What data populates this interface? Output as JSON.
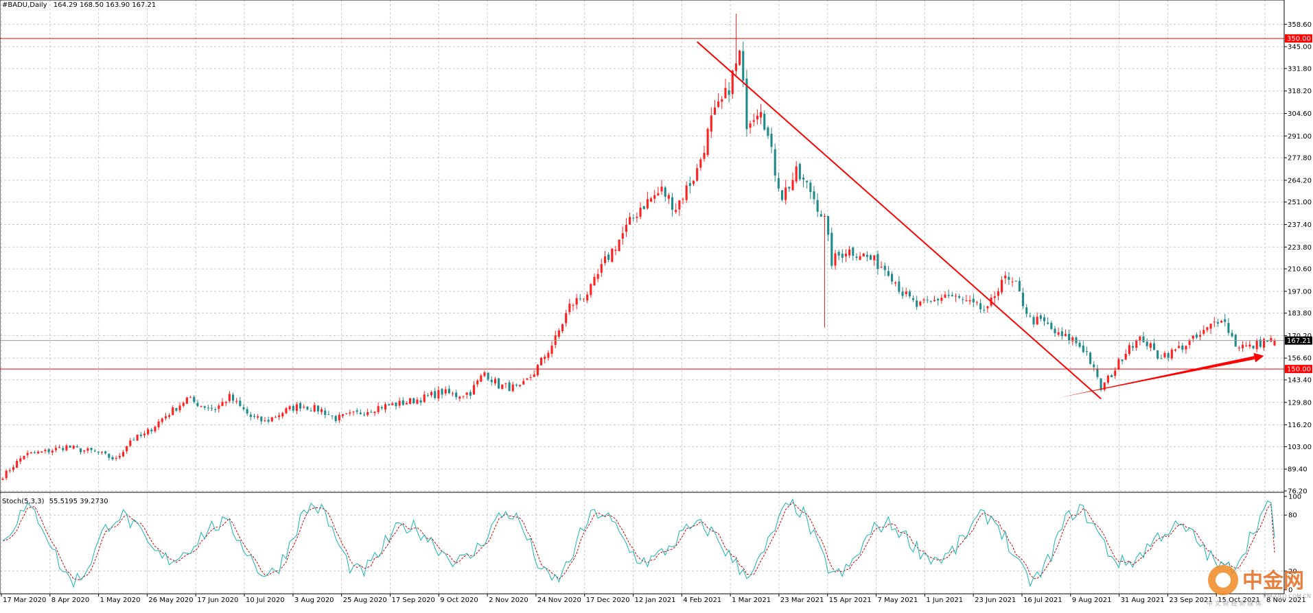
{
  "header": {
    "symbol": "#BADU,Daily",
    "ohlc": "164.29 168.50 163.90 167.21"
  },
  "colors": {
    "bull": "#ff2020",
    "bear": "#1f8a8a",
    "hline": "#ff0000",
    "trend": "#ff0000",
    "stoch_main": "#17b3b3",
    "stoch_signal": "#cc0000",
    "grid": "#c8c8c8"
  },
  "chart_data": [
    {
      "type": "candlestick",
      "title": "#BADU,Daily",
      "ohlc_last": {
        "open": 164.29,
        "high": 168.5,
        "low": 163.9,
        "close": 167.21
      },
      "ylim": [
        76.2,
        365.8
      ],
      "y_ticks": [
        "358.60",
        "345.00",
        "331.80",
        "318.20",
        "304.60",
        "291.00",
        "277.80",
        "264.20",
        "251.00",
        "237.40",
        "223.80",
        "210.60",
        "197.00",
        "183.80",
        "170.20",
        "156.60",
        "143.40",
        "129.80",
        "116.20",
        "103.00",
        "89.40",
        "76.20"
      ],
      "x_labels": [
        "17 Mar 2020",
        "8 Apr 2020",
        "1 May 2020",
        "26 May 2020",
        "17 Jun 2020",
        "10 Jul 2020",
        "3 Aug 2020",
        "25 Aug 2020",
        "17 Sep 2020",
        "9 Oct 2020",
        "2 Nov 2020",
        "24 Nov 2020",
        "17 Dec 2020",
        "12 Jan 2021",
        "4 Feb 2021",
        "1 Mar 2021",
        "23 Mar 2021",
        "15 Apr 2021",
        "7 May 2021",
        "1 Jun 2021",
        "23 Jun 2021",
        "16 Jul 2021",
        "9 Aug 2021",
        "31 Aug 2021",
        "23 Sep 2021",
        "15 Oct 2021",
        "8 Nov 2021"
      ],
      "anchors": [
        [
          0,
          85
        ],
        [
          6,
          98
        ],
        [
          12,
          100
        ],
        [
          18,
          103
        ],
        [
          22,
          101
        ],
        [
          26,
          100
        ],
        [
          32,
          95
        ],
        [
          36,
          107
        ],
        [
          40,
          110
        ],
        [
          45,
          120
        ],
        [
          48,
          125
        ],
        [
          52,
          132
        ],
        [
          56,
          128
        ],
        [
          60,
          126
        ],
        [
          64,
          133
        ],
        [
          70,
          121
        ],
        [
          74,
          118
        ],
        [
          80,
          125
        ],
        [
          84,
          128
        ],
        [
          90,
          125
        ],
        [
          94,
          120
        ],
        [
          100,
          123
        ],
        [
          106,
          127
        ],
        [
          112,
          129
        ],
        [
          118,
          132
        ],
        [
          124,
          136
        ],
        [
          128,
          134
        ],
        [
          132,
          136
        ],
        [
          136,
          148
        ],
        [
          140,
          140
        ],
        [
          146,
          138
        ],
        [
          150,
          148
        ],
        [
          156,
          168
        ],
        [
          160,
          188
        ],
        [
          166,
          198
        ],
        [
          170,
          215
        ],
        [
          176,
          235
        ],
        [
          180,
          248
        ],
        [
          186,
          258
        ],
        [
          190,
          248
        ],
        [
          196,
          270
        ],
        [
          200,
          300
        ],
        [
          204,
          315
        ],
        [
          208,
          340
        ],
        [
          210,
          300
        ],
        [
          214,
          310
        ],
        [
          218,
          270
        ],
        [
          220,
          255
        ],
        [
          224,
          268
        ],
        [
          228,
          258
        ],
        [
          232,
          240
        ],
        [
          234,
          215
        ],
        [
          238,
          222
        ],
        [
          242,
          220
        ],
        [
          246,
          215
        ],
        [
          250,
          210
        ],
        [
          254,
          196
        ],
        [
          258,
          188
        ],
        [
          262,
          190
        ],
        [
          266,
          195
        ],
        [
          270,
          192
        ],
        [
          274,
          188
        ],
        [
          278,
          185
        ],
        [
          282,
          205
        ],
        [
          286,
          200
        ],
        [
          290,
          180
        ],
        [
          294,
          178
        ],
        [
          298,
          170
        ],
        [
          302,
          168
        ],
        [
          306,
          160
        ],
        [
          310,
          138
        ],
        [
          314,
          150
        ],
        [
          318,
          165
        ],
        [
          322,
          168
        ],
        [
          326,
          158
        ],
        [
          330,
          160
        ],
        [
          334,
          165
        ],
        [
          338,
          170
        ],
        [
          342,
          178
        ],
        [
          344,
          182
        ],
        [
          348,
          165
        ],
        [
          352,
          163
        ],
        [
          356,
          167
        ]
      ],
      "hlines": [
        {
          "value": 350.0,
          "label": "350.00"
        },
        {
          "value": 150.0,
          "label": "150.00"
        }
      ],
      "current_price": {
        "value": 167.21,
        "label": "167.21"
      },
      "trendlines": [
        {
          "x1": 196,
          "y1": 348,
          "x2": 310,
          "y2": 132
        },
        {
          "x1": 298,
          "y1": 133,
          "x2": 356,
          "y2": 158,
          "arrow": true
        }
      ]
    },
    {
      "type": "line",
      "title": "Stoch(5,3,3)",
      "label_values": "55.5195 39.2730",
      "ylim": [
        0,
        100
      ],
      "y_ticks": [
        "100",
        "80",
        "20",
        "0"
      ],
      "series": [
        {
          "name": "main",
          "last": 55.5195
        },
        {
          "name": "signal",
          "last": 39.273
        }
      ]
    }
  ],
  "watermark": {
    "text_cn": "中金网",
    "text_en": "CNGOLD.COM.CN",
    "sub_cn": "中 文 财 经 新 媒 体"
  }
}
